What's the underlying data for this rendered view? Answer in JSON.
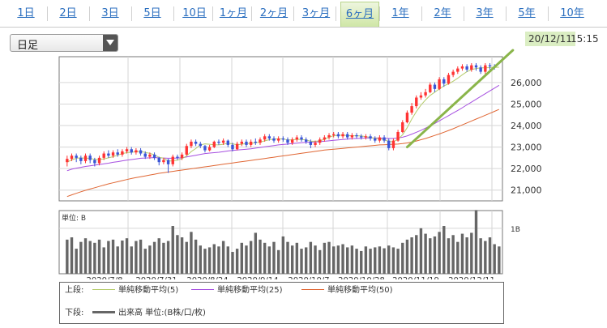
{
  "tabs": [
    {
      "label": "1日",
      "active": false
    },
    {
      "label": "2日",
      "active": false
    },
    {
      "label": "3日",
      "active": false
    },
    {
      "label": "5日",
      "active": false
    },
    {
      "label": "10日",
      "active": false
    },
    {
      "label": "1ヶ月",
      "active": false
    },
    {
      "label": "2ヶ月",
      "active": false
    },
    {
      "label": "3ヶ月",
      "active": false
    },
    {
      "label": "6ヶ月",
      "active": true
    },
    {
      "label": "1年",
      "active": false
    },
    {
      "label": "2年",
      "active": false
    },
    {
      "label": "3年",
      "active": false
    },
    {
      "label": "5年",
      "active": false
    },
    {
      "label": "10年",
      "active": false
    }
  ],
  "select": {
    "value": "日足"
  },
  "datetime": {
    "date": "20/12/11",
    "time": "15:15"
  },
  "chart_data": {
    "type": "candlestick",
    "price_ticks": [
      "26,000",
      "25,000",
      "24,000",
      "23,000",
      "22,000",
      "21,000"
    ],
    "price_tick_values": [
      26000,
      25000,
      24000,
      23000,
      22000,
      21000
    ],
    "price_range": [
      20500,
      27200
    ],
    "date_labels": [
      "2020/7/8",
      "2020/7/31",
      "2020/8/24",
      "2020/9/14",
      "2020/10/7",
      "2020/10/28",
      "2020/11/19",
      "2020/12/11"
    ],
    "volume_unit_label": "単位: B",
    "volume_tick": "1B",
    "candles": [
      {
        "o": 22300,
        "c": 22450,
        "h": 22600,
        "l": 22100
      },
      {
        "o": 22450,
        "c": 22600,
        "h": 22700,
        "l": 22350
      },
      {
        "o": 22600,
        "c": 22500,
        "h": 22700,
        "l": 22300
      },
      {
        "o": 22500,
        "c": 22350,
        "h": 22600,
        "l": 22200
      },
      {
        "o": 22350,
        "c": 22600,
        "h": 22700,
        "l": 22250
      },
      {
        "o": 22600,
        "c": 22400,
        "h": 22700,
        "l": 22250
      },
      {
        "o": 22400,
        "c": 22250,
        "h": 22500,
        "l": 22100
      },
      {
        "o": 22250,
        "c": 22500,
        "h": 22600,
        "l": 22150
      },
      {
        "o": 22500,
        "c": 22700,
        "h": 22800,
        "l": 22400
      },
      {
        "o": 22700,
        "c": 22600,
        "h": 22850,
        "l": 22500
      },
      {
        "o": 22600,
        "c": 22750,
        "h": 22850,
        "l": 22500
      },
      {
        "o": 22750,
        "c": 22650,
        "h": 22900,
        "l": 22550
      },
      {
        "o": 22650,
        "c": 22800,
        "h": 22900,
        "l": 22550
      },
      {
        "o": 22800,
        "c": 22900,
        "h": 23000,
        "l": 22700
      },
      {
        "o": 22900,
        "c": 22750,
        "h": 23000,
        "l": 22650
      },
      {
        "o": 22750,
        "c": 22850,
        "h": 22950,
        "l": 22650
      },
      {
        "o": 22850,
        "c": 22700,
        "h": 22950,
        "l": 22600
      },
      {
        "o": 22700,
        "c": 22550,
        "h": 22800,
        "l": 22450
      },
      {
        "o": 22550,
        "c": 22650,
        "h": 22750,
        "l": 22450
      },
      {
        "o": 22650,
        "c": 22500,
        "h": 22750,
        "l": 22400
      },
      {
        "o": 22500,
        "c": 22300,
        "h": 22550,
        "l": 22150
      },
      {
        "o": 22300,
        "c": 22400,
        "h": 22500,
        "l": 22200
      },
      {
        "o": 22400,
        "c": 22200,
        "h": 22450,
        "l": 21800
      },
      {
        "o": 22200,
        "c": 22550,
        "h": 22650,
        "l": 22100
      },
      {
        "o": 22550,
        "c": 22500,
        "h": 22650,
        "l": 22400
      },
      {
        "o": 22500,
        "c": 22650,
        "h": 22750,
        "l": 22400
      },
      {
        "o": 22650,
        "c": 23050,
        "h": 23150,
        "l": 22600
      },
      {
        "o": 23050,
        "c": 23250,
        "h": 23350,
        "l": 22950
      },
      {
        "o": 23250,
        "c": 23150,
        "h": 23350,
        "l": 23050
      },
      {
        "o": 23150,
        "c": 23050,
        "h": 23250,
        "l": 22950
      },
      {
        "o": 23050,
        "c": 22850,
        "h": 23100,
        "l": 22750
      },
      {
        "o": 22850,
        "c": 23000,
        "h": 23100,
        "l": 22800
      },
      {
        "o": 23000,
        "c": 23250,
        "h": 23300,
        "l": 22950
      },
      {
        "o": 23250,
        "c": 23200,
        "h": 23350,
        "l": 23100
      },
      {
        "o": 23200,
        "c": 23300,
        "h": 23400,
        "l": 23100
      },
      {
        "o": 23300,
        "c": 23100,
        "h": 23350,
        "l": 23000
      },
      {
        "o": 23100,
        "c": 22900,
        "h": 23200,
        "l": 22800
      },
      {
        "o": 22900,
        "c": 23150,
        "h": 23250,
        "l": 22850
      },
      {
        "o": 23150,
        "c": 23250,
        "h": 23350,
        "l": 23050
      },
      {
        "o": 23250,
        "c": 23100,
        "h": 23350,
        "l": 23000
      },
      {
        "o": 23100,
        "c": 23250,
        "h": 23350,
        "l": 23000
      },
      {
        "o": 23250,
        "c": 23200,
        "h": 23400,
        "l": 23100
      },
      {
        "o": 23200,
        "c": 23350,
        "h": 23450,
        "l": 23100
      },
      {
        "o": 23350,
        "c": 23500,
        "h": 23600,
        "l": 23250
      },
      {
        "o": 23500,
        "c": 23400,
        "h": 23600,
        "l": 23300
      },
      {
        "o": 23400,
        "c": 23300,
        "h": 23500,
        "l": 23200
      },
      {
        "o": 23300,
        "c": 23400,
        "h": 23500,
        "l": 23200
      },
      {
        "o": 23400,
        "c": 23350,
        "h": 23500,
        "l": 23250
      },
      {
        "o": 23350,
        "c": 23200,
        "h": 23450,
        "l": 23100
      },
      {
        "o": 23200,
        "c": 23350,
        "h": 23450,
        "l": 23100
      },
      {
        "o": 23350,
        "c": 23450,
        "h": 23550,
        "l": 23250
      },
      {
        "o": 23450,
        "c": 23350,
        "h": 23550,
        "l": 23250
      },
      {
        "o": 23350,
        "c": 23250,
        "h": 23450,
        "l": 23150
      },
      {
        "o": 23250,
        "c": 23100,
        "h": 23350,
        "l": 22950
      },
      {
        "o": 23100,
        "c": 23200,
        "h": 23300,
        "l": 23000
      },
      {
        "o": 23200,
        "c": 23350,
        "h": 23450,
        "l": 23100
      },
      {
        "o": 23350,
        "c": 23450,
        "h": 23550,
        "l": 23250
      },
      {
        "o": 23450,
        "c": 23550,
        "h": 23650,
        "l": 23350
      },
      {
        "o": 23550,
        "c": 23600,
        "h": 23700,
        "l": 23450
      },
      {
        "o": 23600,
        "c": 23500,
        "h": 23700,
        "l": 23400
      },
      {
        "o": 23500,
        "c": 23600,
        "h": 23700,
        "l": 23400
      },
      {
        "o": 23600,
        "c": 23450,
        "h": 23700,
        "l": 23350
      },
      {
        "o": 23450,
        "c": 23550,
        "h": 23650,
        "l": 23350
      },
      {
        "o": 23550,
        "c": 23500,
        "h": 23650,
        "l": 23400
      },
      {
        "o": 23500,
        "c": 23450,
        "h": 23600,
        "l": 23350
      },
      {
        "o": 23450,
        "c": 23500,
        "h": 23600,
        "l": 23350
      },
      {
        "o": 23500,
        "c": 23400,
        "h": 23600,
        "l": 23300
      },
      {
        "o": 23400,
        "c": 23300,
        "h": 23500,
        "l": 23200
      },
      {
        "o": 23300,
        "c": 23450,
        "h": 23550,
        "l": 23200
      },
      {
        "o": 23450,
        "c": 23300,
        "h": 23550,
        "l": 23200
      },
      {
        "o": 23300,
        "c": 22950,
        "h": 23400,
        "l": 22850
      },
      {
        "o": 22950,
        "c": 23300,
        "h": 23400,
        "l": 22850
      },
      {
        "o": 23300,
        "c": 23700,
        "h": 23800,
        "l": 23250
      },
      {
        "o": 23700,
        "c": 24150,
        "h": 24250,
        "l": 23650
      },
      {
        "o": 24150,
        "c": 24600,
        "h": 24700,
        "l": 24100
      },
      {
        "o": 24600,
        "c": 24900,
        "h": 25050,
        "l": 24500
      },
      {
        "o": 24900,
        "c": 25300,
        "h": 25400,
        "l": 24800
      },
      {
        "o": 25300,
        "c": 25400,
        "h": 25550,
        "l": 25200
      },
      {
        "o": 25400,
        "c": 25550,
        "h": 25700,
        "l": 25300
      },
      {
        "o": 25550,
        "c": 25900,
        "h": 26000,
        "l": 25500
      },
      {
        "o": 25900,
        "c": 25700,
        "h": 26000,
        "l": 25550
      },
      {
        "o": 25700,
        "c": 26150,
        "h": 26250,
        "l": 25650
      },
      {
        "o": 26150,
        "c": 25950,
        "h": 26250,
        "l": 25800
      },
      {
        "o": 25950,
        "c": 26350,
        "h": 26450,
        "l": 25900
      },
      {
        "o": 26350,
        "c": 26500,
        "h": 26600,
        "l": 26250
      },
      {
        "o": 26500,
        "c": 26650,
        "h": 26750,
        "l": 26400
      },
      {
        "o": 26650,
        "c": 26750,
        "h": 26850,
        "l": 26550
      },
      {
        "o": 26750,
        "c": 26600,
        "h": 26850,
        "l": 26500
      },
      {
        "o": 26600,
        "c": 26800,
        "h": 26900,
        "l": 26500
      },
      {
        "o": 26800,
        "c": 26700,
        "h": 26900,
        "l": 26550
      },
      {
        "o": 26700,
        "c": 26500,
        "h": 26800,
        "l": 26400
      },
      {
        "o": 26500,
        "c": 26800,
        "h": 26900,
        "l": 26400
      },
      {
        "o": 26800,
        "c": 26750,
        "h": 26900,
        "l": 26600
      },
      {
        "o": 26750,
        "c": 26700,
        "h": 26850,
        "l": 26600
      }
    ],
    "ma5": [
      22300,
      22400,
      22480,
      22500,
      22480,
      22480,
      22420,
      22430,
      22450,
      22500,
      22550,
      22620,
      22700,
      22740,
      22760,
      22780,
      22800,
      22750,
      22710,
      22640,
      22520,
      22480,
      22350,
      22360,
      22390,
      22460,
      22590,
      22790,
      22930,
      23100,
      23150,
      23130,
      23110,
      23100,
      23130,
      23180,
      23150,
      23110,
      23130,
      23170,
      23170,
      23200,
      23230,
      23290,
      23340,
      23370,
      23380,
      23380,
      23330,
      23330,
      23360,
      23350,
      23330,
      23270,
      23270,
      23290,
      23360,
      23460,
      23530,
      23540,
      23560,
      23530,
      23530,
      23520,
      23520,
      23480,
      23450,
      23410,
      23390,
      23340,
      23250,
      23250,
      23360,
      23570,
      23900,
      24300,
      24650,
      24950,
      25190,
      25400,
      25550,
      25700,
      25840,
      25940,
      26060,
      26200,
      26360,
      26500,
      26600,
      26650,
      26680,
      26680,
      26690,
      26700,
      26710
    ],
    "ma25": [
      21900,
      21970,
      22020,
      22060,
      22100,
      22130,
      22160,
      22190,
      22220,
      22250,
      22290,
      22320,
      22360,
      22390,
      22420,
      22450,
      22480,
      22490,
      22500,
      22510,
      22500,
      22490,
      22480,
      22480,
      22490,
      22500,
      22540,
      22580,
      22620,
      22660,
      22700,
      22720,
      22740,
      22760,
      22790,
      22820,
      22840,
      22860,
      22880,
      22900,
      22920,
      22950,
      22980,
      23010,
      23040,
      23070,
      23100,
      23120,
      23140,
      23160,
      23180,
      23200,
      23220,
      23230,
      23240,
      23250,
      23270,
      23290,
      23310,
      23330,
      23350,
      23370,
      23390,
      23400,
      23410,
      23420,
      23420,
      23420,
      23420,
      23410,
      23400,
      23400,
      23420,
      23460,
      23520,
      23600,
      23690,
      23780,
      23880,
      23990,
      24100,
      24220,
      24340,
      24460,
      24580,
      24700,
      24830,
      24960,
      25090,
      25220,
      25350,
      25480,
      25610,
      25740,
      25870
    ],
    "ma50": [
      20700,
      20780,
      20850,
      20920,
      20990,
      21050,
      21110,
      21170,
      21230,
      21290,
      21340,
      21390,
      21440,
      21490,
      21540,
      21580,
      21620,
      21660,
      21700,
      21740,
      21780,
      21810,
      21840,
      21870,
      21900,
      21930,
      21960,
      21990,
      22020,
      22050,
      22080,
      22110,
      22140,
      22170,
      22200,
      22230,
      22260,
      22290,
      22320,
      22350,
      22380,
      22410,
      22440,
      22470,
      22500,
      22530,
      22560,
      22590,
      22620,
      22650,
      22680,
      22710,
      22740,
      22770,
      22800,
      22830,
      22860,
      22880,
      22900,
      22920,
      22940,
      22960,
      22980,
      23000,
      23020,
      23040,
      23060,
      23080,
      23100,
      23110,
      23120,
      23130,
      23140,
      23160,
      23190,
      23230,
      23280,
      23340,
      23400,
      23470,
      23540,
      23610,
      23690,
      23770,
      23850,
      23940,
      24030,
      24120,
      24210,
      24300,
      24390,
      24480,
      24570,
      24660,
      24750
    ],
    "trendline": {
      "from_index": 74,
      "from_value": 23000,
      "to_index": 97,
      "to_value": 27500
    },
    "volumes": [
      0.75,
      0.8,
      0.55,
      0.7,
      0.78,
      0.72,
      0.68,
      0.75,
      0.58,
      0.72,
      0.75,
      0.6,
      0.73,
      0.78,
      0.6,
      0.72,
      0.75,
      0.55,
      0.62,
      0.7,
      0.78,
      0.68,
      0.72,
      1.05,
      0.85,
      0.8,
      0.7,
      0.92,
      0.75,
      0.62,
      0.55,
      0.58,
      0.65,
      0.6,
      0.72,
      0.6,
      0.48,
      0.55,
      0.68,
      0.62,
      0.72,
      0.9,
      0.75,
      0.68,
      0.6,
      0.7,
      0.52,
      0.82,
      0.7,
      0.62,
      0.68,
      0.55,
      0.58,
      0.7,
      0.62,
      0.52,
      0.68,
      0.7,
      0.6,
      0.62,
      0.65,
      0.58,
      0.62,
      0.55,
      0.5,
      0.6,
      0.55,
      0.58,
      0.6,
      0.56,
      0.62,
      0.58,
      0.55,
      0.68,
      0.75,
      0.8,
      0.85,
      1.0,
      0.88,
      0.78,
      0.82,
      0.92,
      1.05,
      0.78,
      0.85,
      0.7,
      0.88,
      0.8,
      0.9,
      1.4,
      0.78,
      0.72,
      0.8,
      0.65,
      0.6
    ]
  },
  "legend": {
    "upper_label": "上段:",
    "ma5_label": "単純移動平均(5)",
    "ma25_label": "単純移動平均(25)",
    "ma50_label": "単純移動平均(50)",
    "lower_label": "下段:",
    "volume_label": "出来高 単位:(B株/口/枚)",
    "ma5_color": "#b5cc6c",
    "ma25_color": "#a64fe0",
    "ma50_color": "#e06633",
    "volume_color": "#666666",
    "up_color": "#ff3333",
    "down_color": "#3a55d6",
    "trend_color": "#8ab54a"
  }
}
